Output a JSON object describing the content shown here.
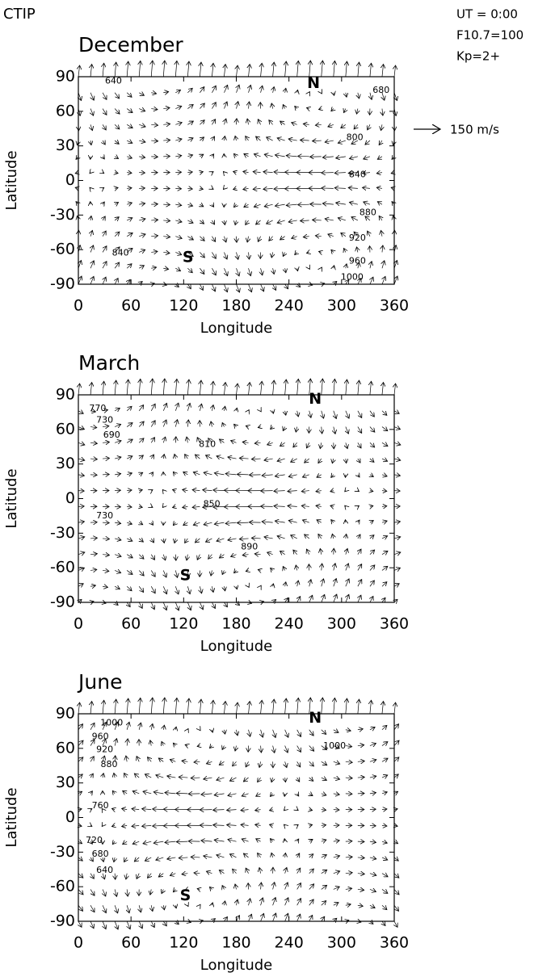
{
  "header": {
    "title": "CTIP",
    "ut": "UT = 0:00",
    "f107": "F10.7=100",
    "kp": "Kp=2+",
    "scale": "150 m/s"
  },
  "chart_data": [
    {
      "type": "quiver",
      "title": "December",
      "xlabel": "Longitude",
      "ylabel": "Latitude",
      "xlim": [
        0,
        360
      ],
      "ylim": [
        -90,
        90
      ],
      "xticks": [
        0,
        60,
        120,
        180,
        240,
        300,
        360
      ],
      "yticks": [
        -90,
        -60,
        -30,
        0,
        30,
        60,
        90
      ],
      "annotations": [
        {
          "text": "640",
          "x": 40,
          "y": 86
        },
        {
          "text": "680",
          "x": 345,
          "y": 78
        },
        {
          "text": "800",
          "x": 315,
          "y": 37
        },
        {
          "text": "840",
          "x": 318,
          "y": 5
        },
        {
          "text": "880",
          "x": 330,
          "y": -28
        },
        {
          "text": "920",
          "x": 318,
          "y": -50
        },
        {
          "text": "960",
          "x": 318,
          "y": -70
        },
        {
          "text": "1000",
          "x": 312,
          "y": -84
        },
        {
          "text": "840",
          "x": 48,
          "y": -63
        },
        {
          "text": "N",
          "x": 268,
          "y": 84
        },
        {
          "text": "S",
          "x": 125,
          "y": -67
        }
      ]
    },
    {
      "type": "quiver",
      "title": "March",
      "xlabel": "Longitude",
      "ylabel": "Latitude",
      "xlim": [
        0,
        360
      ],
      "ylim": [
        -90,
        90
      ],
      "xticks": [
        0,
        60,
        120,
        180,
        240,
        300,
        360
      ],
      "yticks": [
        -90,
        -60,
        -30,
        0,
        30,
        60,
        90
      ],
      "annotations": [
        {
          "text": "770",
          "x": 22,
          "y": 78
        },
        {
          "text": "730",
          "x": 30,
          "y": 68
        },
        {
          "text": "690",
          "x": 38,
          "y": 55
        },
        {
          "text": "810",
          "x": 147,
          "y": 47
        },
        {
          "text": "850",
          "x": 152,
          "y": -5
        },
        {
          "text": "890",
          "x": 195,
          "y": -42
        },
        {
          "text": "730",
          "x": 30,
          "y": -15
        },
        {
          "text": "N",
          "x": 270,
          "y": 86
        },
        {
          "text": "S",
          "x": 122,
          "y": -67
        }
      ]
    },
    {
      "type": "quiver",
      "title": "June",
      "xlabel": "Longitude",
      "ylabel": "Latitude",
      "xlim": [
        0,
        360
      ],
      "ylim": [
        -90,
        90
      ],
      "xticks": [
        0,
        60,
        120,
        180,
        240,
        300,
        360
      ],
      "yticks": [
        -90,
        -60,
        -30,
        0,
        30,
        60,
        90
      ],
      "annotations": [
        {
          "text": "1000",
          "x": 38,
          "y": 82
        },
        {
          "text": "960",
          "x": 25,
          "y": 70
        },
        {
          "text": "920",
          "x": 30,
          "y": 59
        },
        {
          "text": "880",
          "x": 35,
          "y": 46
        },
        {
          "text": "1000",
          "x": 292,
          "y": 62
        },
        {
          "text": "760",
          "x": 25,
          "y": 10
        },
        {
          "text": "720",
          "x": 18,
          "y": -20
        },
        {
          "text": "680",
          "x": 25,
          "y": -32
        },
        {
          "text": "640",
          "x": 30,
          "y": -46
        },
        {
          "text": "N",
          "x": 270,
          "y": 86
        },
        {
          "text": "S",
          "x": 122,
          "y": -68
        }
      ]
    }
  ]
}
